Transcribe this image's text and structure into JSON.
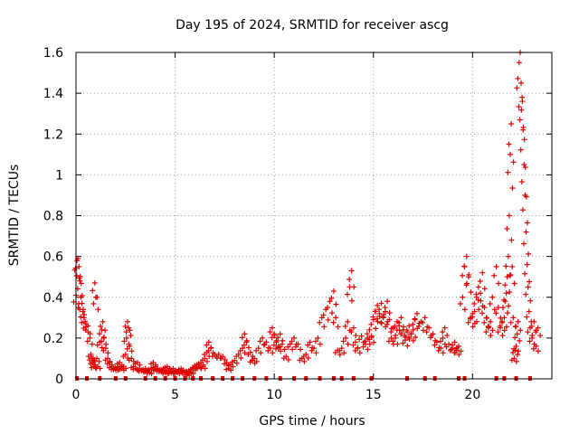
{
  "chart_data": {
    "type": "scatter",
    "title": "Day 195 of 2024, SRMTID for receiver ascg",
    "xlabel": "GPS time / hours",
    "ylabel": "SRMTID / TECUs",
    "xlim": [
      0,
      24
    ],
    "ylim": [
      0,
      1.6
    ],
    "xticks": [
      0,
      5,
      10,
      15,
      20
    ],
    "yticks": [
      0,
      0.2,
      0.4,
      0.6,
      0.8,
      1,
      1.2,
      1.4,
      1.6
    ],
    "xtick_labels": [
      "0",
      "5",
      "10",
      "15",
      "20"
    ],
    "ytick_labels": [
      "0",
      "0.2",
      "0.4",
      "0.6",
      "0.8",
      "1",
      "1.2",
      "1.4",
      "1.6"
    ],
    "grid": true,
    "marker": "plus",
    "color": "#e00000",
    "series": [
      {
        "name": "SRMTID",
        "points": [
          [
            0.0,
            0.41
          ],
          [
            0.05,
            0.58
          ],
          [
            0.1,
            0.59
          ],
          [
            0.15,
            0.55
          ],
          [
            0.2,
            0.48
          ],
          [
            0.25,
            0.4
          ],
          [
            0.3,
            0.37
          ],
          [
            0.35,
            0.33
          ],
          [
            0.4,
            0.3
          ],
          [
            0.5,
            0.27
          ],
          [
            0.6,
            0.26
          ],
          [
            0.7,
            0.2
          ],
          [
            0.75,
            0.12
          ],
          [
            0.8,
            0.1
          ],
          [
            0.85,
            0.08
          ],
          [
            0.9,
            0.06
          ],
          [
            0.95,
            0.47
          ],
          [
            1.0,
            0.4
          ],
          [
            1.05,
            0.1
          ],
          [
            1.1,
            0.06
          ],
          [
            1.2,
            0.18
          ],
          [
            1.3,
            0.24
          ],
          [
            1.35,
            0.28
          ],
          [
            1.4,
            0.2
          ],
          [
            1.5,
            0.15
          ],
          [
            1.6,
            0.1
          ],
          [
            1.7,
            0.08
          ],
          [
            1.8,
            0.06
          ],
          [
            1.9,
            0.05
          ],
          [
            2.0,
            0.05
          ],
          [
            2.1,
            0.06
          ],
          [
            2.2,
            0.08
          ],
          [
            2.3,
            0.05
          ],
          [
            2.4,
            0.06
          ],
          [
            2.5,
            0.12
          ],
          [
            2.55,
            0.2
          ],
          [
            2.6,
            0.28
          ],
          [
            2.65,
            0.25
          ],
          [
            2.7,
            0.16
          ],
          [
            2.8,
            0.1
          ],
          [
            2.9,
            0.06
          ],
          [
            3.0,
            0.05
          ],
          [
            3.1,
            0.08
          ],
          [
            3.2,
            0.05
          ],
          [
            3.3,
            0.04
          ],
          [
            3.5,
            0.05
          ],
          [
            3.6,
            0.04
          ],
          [
            3.7,
            0.03
          ],
          [
            3.8,
            0.05
          ],
          [
            3.9,
            0.08
          ],
          [
            4.0,
            0.06
          ],
          [
            4.1,
            0.05
          ],
          [
            4.2,
            0.04
          ],
          [
            4.3,
            0.04
          ],
          [
            4.4,
            0.05
          ],
          [
            4.5,
            0.03
          ],
          [
            4.6,
            0.06
          ],
          [
            4.7,
            0.04
          ],
          [
            4.8,
            0.03
          ],
          [
            4.9,
            0.05
          ],
          [
            5.0,
            0.04
          ],
          [
            5.1,
            0.03
          ],
          [
            5.2,
            0.04
          ],
          [
            5.3,
            0.05
          ],
          [
            5.4,
            0.04
          ],
          [
            5.5,
            0.03
          ],
          [
            5.6,
            0.02
          ],
          [
            5.7,
            0.04
          ],
          [
            5.8,
            0.03
          ],
          [
            5.9,
            0.05
          ],
          [
            6.0,
            0.06
          ],
          [
            6.1,
            0.07
          ],
          [
            6.2,
            0.06
          ],
          [
            6.3,
            0.08
          ],
          [
            6.4,
            0.06
          ],
          [
            6.5,
            0.1
          ],
          [
            6.6,
            0.13
          ],
          [
            6.7,
            0.18
          ],
          [
            6.8,
            0.15
          ],
          [
            7.0,
            0.12
          ],
          [
            7.2,
            0.12
          ],
          [
            7.4,
            0.11
          ],
          [
            7.6,
            0.08
          ],
          [
            7.7,
            0.05
          ],
          [
            7.8,
            0.07
          ],
          [
            8.0,
            0.09
          ],
          [
            8.2,
            0.12
          ],
          [
            8.4,
            0.15
          ],
          [
            8.5,
            0.22
          ],
          [
            8.6,
            0.18
          ],
          [
            8.8,
            0.13
          ],
          [
            8.9,
            0.09
          ],
          [
            9.0,
            0.1
          ],
          [
            9.2,
            0.15
          ],
          [
            9.4,
            0.2
          ],
          [
            9.6,
            0.18
          ],
          [
            9.8,
            0.15
          ],
          [
            9.9,
            0.25
          ],
          [
            10.0,
            0.22
          ],
          [
            10.1,
            0.18
          ],
          [
            10.2,
            0.16
          ],
          [
            10.3,
            0.22
          ],
          [
            10.4,
            0.17
          ],
          [
            10.6,
            0.11
          ],
          [
            10.8,
            0.17
          ],
          [
            11.0,
            0.2
          ],
          [
            11.2,
            0.17
          ],
          [
            11.4,
            0.1
          ],
          [
            11.6,
            0.12
          ],
          [
            11.8,
            0.18
          ],
          [
            12.0,
            0.15
          ],
          [
            12.2,
            0.2
          ],
          [
            12.4,
            0.3
          ],
          [
            12.6,
            0.34
          ],
          [
            12.8,
            0.38
          ],
          [
            13.0,
            0.43
          ],
          [
            13.1,
            0.3
          ],
          [
            13.2,
            0.14
          ],
          [
            13.4,
            0.15
          ],
          [
            13.6,
            0.2
          ],
          [
            13.7,
            0.28
          ],
          [
            13.8,
            0.45
          ],
          [
            13.9,
            0.53
          ],
          [
            14.0,
            0.25
          ],
          [
            14.1,
            0.18
          ],
          [
            14.2,
            0.15
          ],
          [
            14.4,
            0.21
          ],
          [
            14.6,
            0.17
          ],
          [
            14.7,
            0.2
          ],
          [
            14.8,
            0.24
          ],
          [
            14.9,
            0.21
          ],
          [
            15.0,
            0.29
          ],
          [
            15.1,
            0.33
          ],
          [
            15.2,
            0.36
          ],
          [
            15.3,
            0.32
          ],
          [
            15.4,
            0.37
          ],
          [
            15.5,
            0.3
          ],
          [
            15.6,
            0.33
          ],
          [
            15.7,
            0.38
          ],
          [
            15.8,
            0.29
          ],
          [
            15.9,
            0.2
          ],
          [
            16.0,
            0.25
          ],
          [
            16.1,
            0.2
          ],
          [
            16.2,
            0.28
          ],
          [
            16.3,
            0.26
          ],
          [
            16.4,
            0.3
          ],
          [
            16.5,
            0.24
          ],
          [
            16.6,
            0.19
          ],
          [
            16.7,
            0.23
          ],
          [
            16.8,
            0.26
          ],
          [
            16.9,
            0.22
          ],
          [
            17.0,
            0.24
          ],
          [
            17.1,
            0.29
          ],
          [
            17.2,
            0.32
          ],
          [
            17.4,
            0.28
          ],
          [
            17.6,
            0.3
          ],
          [
            17.8,
            0.25
          ],
          [
            18.0,
            0.22
          ],
          [
            18.2,
            0.18
          ],
          [
            18.4,
            0.15
          ],
          [
            18.5,
            0.2
          ],
          [
            18.6,
            0.25
          ],
          [
            18.8,
            0.17
          ],
          [
            19.0,
            0.15
          ],
          [
            19.1,
            0.18
          ],
          [
            19.2,
            0.14
          ],
          [
            19.3,
            0.16
          ],
          [
            19.5,
            0.4
          ],
          [
            19.6,
            0.55
          ],
          [
            19.7,
            0.6
          ],
          [
            19.8,
            0.5
          ],
          [
            19.9,
            0.3
          ],
          [
            20.0,
            0.32
          ],
          [
            20.1,
            0.33
          ],
          [
            20.2,
            0.4
          ],
          [
            20.3,
            0.45
          ],
          [
            20.4,
            0.42
          ],
          [
            20.5,
            0.52
          ],
          [
            20.6,
            0.35
          ],
          [
            20.7,
            0.3
          ],
          [
            20.8,
            0.25
          ],
          [
            20.9,
            0.28
          ],
          [
            21.0,
            0.4
          ],
          [
            21.2,
            0.55
          ],
          [
            21.3,
            0.35
          ],
          [
            21.4,
            0.25
          ],
          [
            21.5,
            0.28
          ],
          [
            21.6,
            0.3
          ],
          [
            21.65,
            0.38
          ],
          [
            21.7,
            0.42
          ],
          [
            21.75,
            0.5
          ],
          [
            21.8,
            0.6
          ],
          [
            21.85,
            0.8
          ],
          [
            21.9,
            1.1
          ],
          [
            21.95,
            1.25
          ],
          [
            22.0,
            0.55
          ],
          [
            22.05,
            0.3
          ],
          [
            22.1,
            0.1
          ],
          [
            22.15,
            0.14
          ],
          [
            22.2,
            0.16
          ],
          [
            22.25,
            0.22
          ],
          [
            22.3,
            0.28
          ],
          [
            22.35,
            1.55
          ],
          [
            22.4,
            1.6
          ],
          [
            22.45,
            1.45
          ],
          [
            22.5,
            1.38
          ],
          [
            22.55,
            1.22
          ],
          [
            22.6,
            1.05
          ],
          [
            22.65,
            0.9
          ],
          [
            22.7,
            0.72
          ],
          [
            22.75,
            0.56
          ],
          [
            22.8,
            0.45
          ],
          [
            22.85,
            0.33
          ],
          [
            22.9,
            0.25
          ],
          [
            23.0,
            0.2
          ],
          [
            23.1,
            0.28
          ],
          [
            23.2,
            0.16
          ],
          [
            23.3,
            0.25
          ]
        ],
        "zero_points": [
          0.05,
          0.55,
          1.2,
          2.0,
          2.5,
          3.5,
          4.0,
          4.5,
          5.0,
          5.5,
          5.9,
          6.3,
          6.9,
          7.4,
          7.9,
          8.4,
          9.0,
          9.6,
          10.3,
          11.0,
          11.6,
          12.3,
          13.0,
          13.4,
          14.0,
          14.9,
          16.7,
          17.6,
          18.1,
          19.3,
          19.6,
          21.2,
          21.6,
          22.2,
          22.9
        ]
      }
    ]
  }
}
